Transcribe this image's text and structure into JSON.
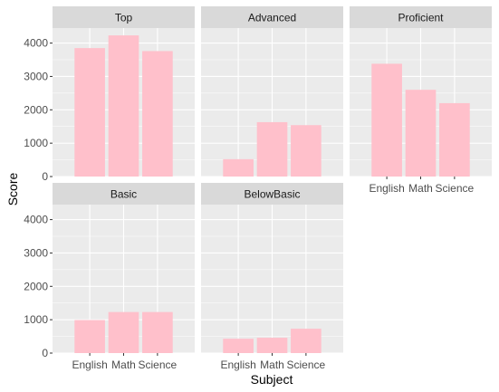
{
  "chart_data": {
    "type": "bar",
    "xlabel": "Subject",
    "ylabel": "Score",
    "categories": [
      "English",
      "Math",
      "Science"
    ],
    "yticks": [
      0,
      1000,
      2000,
      3000,
      4000
    ],
    "ylim": [
      0,
      4450
    ],
    "bar_color": "#FFC0CB",
    "panel_bg": "#EBEBEB",
    "strip_bg": "#D9D9D9",
    "grid_major": "#FFFFFF",
    "facets": [
      {
        "label": "Top",
        "values": [
          3850,
          4230,
          3760
        ]
      },
      {
        "label": "Advanced",
        "values": [
          520,
          1630,
          1540
        ]
      },
      {
        "label": "Proficient",
        "values": [
          3380,
          2600,
          2200
        ]
      },
      {
        "label": "Basic",
        "values": [
          990,
          1230,
          1230
        ]
      },
      {
        "label": "BelowBasic",
        "values": [
          430,
          460,
          730
        ]
      }
    ]
  }
}
